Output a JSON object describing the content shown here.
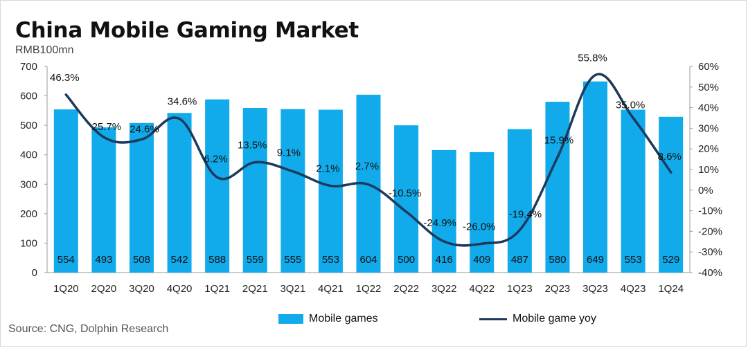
{
  "title": "China Mobile Gaming Market",
  "unit": "RMB100mn",
  "source": "Source: CNG, Dolphin Research",
  "colors": {
    "bar": "#11aaea",
    "line": "#1b3a5c"
  },
  "chart_data": {
    "type": "bar",
    "categories": [
      "1Q20",
      "2Q20",
      "3Q20",
      "4Q20",
      "1Q21",
      "2Q21",
      "3Q21",
      "4Q21",
      "1Q22",
      "2Q22",
      "3Q22",
      "4Q22",
      "1Q23",
      "2Q23",
      "3Q23",
      "4Q23",
      "1Q24"
    ],
    "series": [
      {
        "name": "Mobile games",
        "type": "bar",
        "axis": "left",
        "values": [
          554,
          493,
          508,
          542,
          588,
          559,
          555,
          553,
          604,
          500,
          416,
          409,
          487,
          580,
          649,
          553,
          529
        ]
      },
      {
        "name": "Mobile game yoy",
        "type": "line",
        "axis": "right",
        "values": [
          46.3,
          25.7,
          24.6,
          34.6,
          6.2,
          13.5,
          9.1,
          2.1,
          2.7,
          -10.5,
          -24.9,
          -26.0,
          -19.4,
          15.9,
          55.8,
          35.0,
          8.6
        ],
        "labels": [
          "46.3%",
          "25.7%",
          "24.6%",
          "34.6%",
          "6.2%",
          "13.5%",
          "9.1%",
          "2.1%",
          "2.7%",
          "-10.5%",
          "-24.9%",
          "-26.0%",
          "-19.4%",
          "15.9%",
          "55.8%",
          "35.0%",
          "8.6%"
        ]
      }
    ],
    "ylim": [
      0,
      700
    ],
    "y_ticks": [
      "0",
      "100",
      "200",
      "300",
      "400",
      "500",
      "600",
      "700"
    ],
    "y2lim": [
      -40,
      60
    ],
    "y2_ticks": [
      "-40%",
      "-30%",
      "-20%",
      "-10%",
      "0%",
      "10%",
      "20%",
      "30%",
      "40%",
      "50%",
      "60%"
    ],
    "grid": false,
    "legend_position": "bottom"
  }
}
